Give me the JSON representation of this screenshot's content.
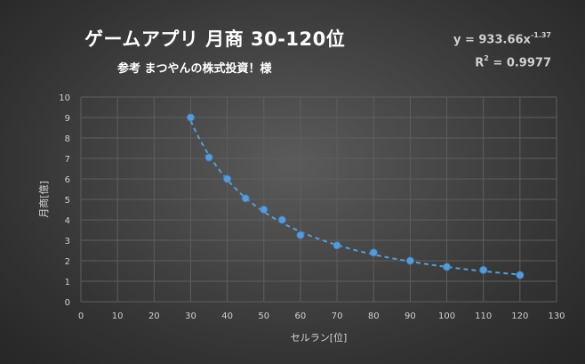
{
  "chart_data": {
    "type": "scatter",
    "title": "ゲームアプリ 月商 30-120位",
    "subtitle": "参考 まつやんの株式投資！様",
    "xlabel": "セルラン[位]",
    "ylabel": "月商[億]",
    "xlim": [
      0,
      130
    ],
    "ylim": [
      0,
      10
    ],
    "x_ticks": [
      "0",
      "10",
      "20",
      "30",
      "40",
      "50",
      "60",
      "70",
      "80",
      "90",
      "100",
      "110",
      "120",
      "130"
    ],
    "y_ticks": [
      "0",
      "1",
      "2",
      "3",
      "4",
      "5",
      "6",
      "7",
      "8",
      "9",
      "10"
    ],
    "grid": true,
    "series": [
      {
        "x": [
          30,
          35,
          40,
          45,
          50,
          55,
          60,
          70,
          80,
          90,
          100,
          110,
          120
        ],
        "y": [
          9.0,
          7.05,
          6.0,
          5.05,
          4.5,
          4.0,
          3.25,
          2.75,
          2.4,
          2.0,
          1.7,
          1.55,
          1.3
        ],
        "color": "#5b9bd5"
      }
    ],
    "trendline": {
      "type": "power",
      "coefficient": 933.66,
      "exponent": -1.37,
      "equation_prefix": "y = 933.66x",
      "equation_exponent": "-1.37",
      "r2_prefix": "R",
      "r2_sup": "2",
      "r2_value": " = 0.9977",
      "color": "#5b9bd5",
      "style": "dashed"
    }
  }
}
